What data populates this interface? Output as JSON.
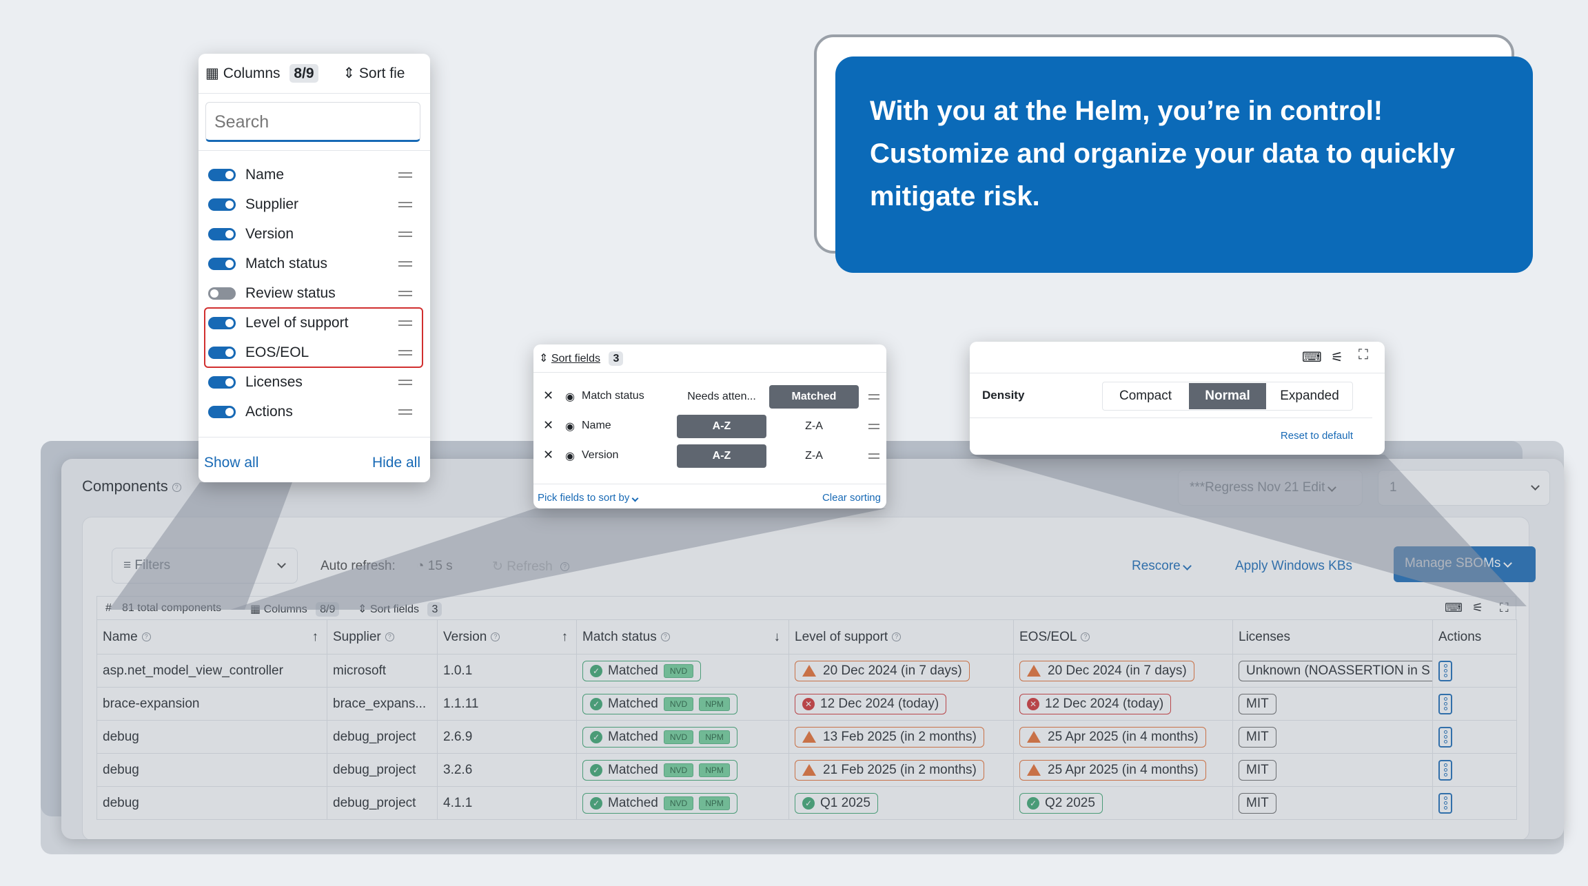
{
  "banner": {
    "line1": "With you at the Helm, you’re in control!",
    "line2": "Customize and organize your data to quickly mitigate risk."
  },
  "columns_popover": {
    "title": "Columns",
    "count": "8/9",
    "sort_fields_partial": "Sort fie",
    "search_placeholder": "Search",
    "items": [
      {
        "label": "Name",
        "enabled": true
      },
      {
        "label": "Supplier",
        "enabled": true
      },
      {
        "label": "Version",
        "enabled": true
      },
      {
        "label": "Match status",
        "enabled": true
      },
      {
        "label": "Review status",
        "enabled": false
      },
      {
        "label": "Level of support",
        "enabled": true
      },
      {
        "label": "EOS/EOL",
        "enabled": true
      },
      {
        "label": "Licenses",
        "enabled": true
      },
      {
        "label": "Actions",
        "enabled": true
      }
    ],
    "show_all": "Show all",
    "hide_all": "Hide all"
  },
  "sort_popover": {
    "title": "Sort fields",
    "count": "3",
    "rows": [
      {
        "field": "Match status",
        "opt1": "Needs atten...",
        "opt2": "Matched",
        "active": 2
      },
      {
        "field": "Name",
        "opt1": "A-Z",
        "opt2": "Z-A",
        "active": 1
      },
      {
        "field": "Version",
        "opt1": "A-Z",
        "opt2": "Z-A",
        "active": 1
      }
    ],
    "pick_fields": "Pick fields to sort by",
    "clear_sorting": "Clear sorting"
  },
  "density_popover": {
    "label": "Density",
    "options": [
      "Compact",
      "Normal",
      "Expanded"
    ],
    "selected": "Normal",
    "reset": "Reset to default"
  },
  "components": {
    "title": "Components",
    "sbom_select": "***Regress Nov 21 Edit",
    "version_select": "1",
    "filters": "Filters",
    "auto_refresh_label": "Auto refresh:",
    "auto_refresh_value": "15 s",
    "refresh": "Refresh",
    "rescore": "Rescore",
    "apply_kbs": "Apply Windows KBs",
    "manage_sboms": "Manage SBOMs",
    "total": "81 total components",
    "columns_label": "Columns",
    "columns_count": "8/9",
    "sort_label": "Sort fields",
    "sort_count": "3"
  },
  "table": {
    "headers": [
      "Name",
      "Supplier",
      "Version",
      "Match status",
      "Level of support",
      "EOS/EOL",
      "Licenses",
      "Actions"
    ],
    "rows": [
      {
        "name": "asp.net_model_view_controller",
        "supplier": "microsoft",
        "version": "1.0.1",
        "match": "Matched",
        "tags": [
          "NVD"
        ],
        "support": "20 Dec 2024 (in 7 days)",
        "support_kind": "warn",
        "eol": "20 Dec 2024 (in 7 days)",
        "eol_kind": "warn",
        "license": "Unknown (NOASSERTION in S"
      },
      {
        "name": "brace-expansion",
        "supplier": "brace_expans...",
        "version": "1.1.11",
        "match": "Matched",
        "tags": [
          "NVD",
          "NPM"
        ],
        "support": "12 Dec 2024 (today)",
        "support_kind": "err",
        "eol": "12 Dec 2024 (today)",
        "eol_kind": "err",
        "license": "MIT"
      },
      {
        "name": "debug",
        "supplier": "debug_project",
        "version": "2.6.9",
        "match": "Matched",
        "tags": [
          "NVD",
          "NPM"
        ],
        "support": "13 Feb 2025 (in 2 months)",
        "support_kind": "warn",
        "eol": "25 Apr 2025 (in 4 months)",
        "eol_kind": "warn",
        "license": "MIT"
      },
      {
        "name": "debug",
        "supplier": "debug_project",
        "version": "3.2.6",
        "match": "Matched",
        "tags": [
          "NVD",
          "NPM"
        ],
        "support": "21 Feb 2025 (in 2 months)",
        "support_kind": "warn",
        "eol": "25 Apr 2025 (in 4 months)",
        "eol_kind": "warn",
        "license": "MIT"
      },
      {
        "name": "debug",
        "supplier": "debug_project",
        "version": "4.1.1",
        "match": "Matched",
        "tags": [
          "NVD",
          "NPM"
        ],
        "support": "Q1 2025",
        "support_kind": "ok",
        "eol": "Q2 2025",
        "eol_kind": "ok",
        "license": "MIT"
      }
    ]
  }
}
